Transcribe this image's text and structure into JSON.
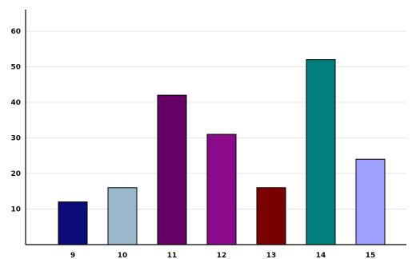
{
  "chart_data": {
    "type": "bar",
    "categories": [
      "9",
      "10",
      "11",
      "12",
      "13",
      "14",
      "15"
    ],
    "values": [
      12,
      16,
      42,
      31,
      16,
      52,
      24
    ],
    "colors": [
      "#0b0b7a",
      "#9ab8cc",
      "#660066",
      "#8a0a8a",
      "#7a0000",
      "#007f7f",
      "#9f9fff"
    ],
    "y_ticks": [
      10,
      20,
      30,
      40,
      50,
      60
    ],
    "ylim": [
      0,
      65
    ],
    "grid": true,
    "legend": "none",
    "title": "",
    "xlabel": "",
    "ylabel": ""
  }
}
